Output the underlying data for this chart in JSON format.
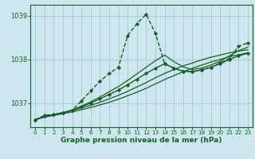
{
  "title": "Graphe pression niveau de la mer (hPa)",
  "bg_color": "#cce8ee",
  "grid_color": "#aaccd4",
  "line_color": "#1a5c28",
  "xlim": [
    -0.5,
    23.5
  ],
  "ylim": [
    1036.45,
    1039.25
  ],
  "yticks": [
    1037,
    1038,
    1039
  ],
  "xticks": [
    0,
    1,
    2,
    3,
    4,
    5,
    6,
    7,
    8,
    9,
    10,
    11,
    12,
    13,
    14,
    15,
    16,
    17,
    18,
    19,
    20,
    21,
    22,
    23
  ],
  "series": [
    {
      "x": [
        0,
        1,
        2,
        3,
        4,
        5,
        6,
        7,
        8,
        9,
        10,
        11,
        12,
        13,
        14,
        15,
        16,
        17,
        18,
        19,
        20,
        21,
        22,
        23
      ],
      "y": [
        1036.62,
        1036.68,
        1036.72,
        1036.76,
        1036.8,
        1036.85,
        1036.9,
        1036.96,
        1037.02,
        1037.09,
        1037.17,
        1037.25,
        1037.34,
        1037.44,
        1037.54,
        1037.63,
        1037.72,
        1037.8,
        1037.87,
        1037.94,
        1038.0,
        1038.06,
        1038.11,
        1038.15
      ],
      "linestyle": "-",
      "marker": null,
      "lw": 0.9
    },
    {
      "x": [
        0,
        1,
        2,
        3,
        4,
        5,
        6,
        7,
        8,
        9,
        10,
        11,
        12,
        13,
        14,
        15,
        16,
        17,
        18,
        19,
        20,
        21,
        22,
        23
      ],
      "y": [
        1036.62,
        1036.69,
        1036.74,
        1036.78,
        1036.83,
        1036.89,
        1036.95,
        1037.02,
        1037.1,
        1037.18,
        1037.27,
        1037.37,
        1037.47,
        1037.58,
        1037.68,
        1037.77,
        1037.85,
        1037.92,
        1037.99,
        1038.05,
        1038.1,
        1038.15,
        1038.19,
        1038.22
      ],
      "linestyle": "-",
      "marker": null,
      "lw": 0.9
    },
    {
      "x": [
        0,
        1,
        2,
        3,
        4,
        5,
        6,
        7,
        8,
        9,
        10,
        11,
        12,
        13,
        14,
        15,
        16,
        17,
        18,
        19,
        20,
        21,
        22,
        23
      ],
      "y": [
        1036.62,
        1036.7,
        1036.74,
        1036.78,
        1036.84,
        1036.92,
        1037.0,
        1037.1,
        1037.2,
        1037.3,
        1037.42,
        1037.55,
        1037.68,
        1037.8,
        1037.9,
        1037.8,
        1037.73,
        1037.72,
        1037.76,
        1037.82,
        1037.9,
        1038.0,
        1038.08,
        1038.14
      ],
      "linestyle": "-",
      "marker": "D",
      "lw": 1.0
    },
    {
      "x": [
        0,
        1,
        2,
        3,
        4,
        5,
        6,
        7,
        8,
        9,
        10,
        11,
        12,
        13,
        14,
        15,
        16,
        17,
        18,
        19,
        20,
        21,
        22,
        23
      ],
      "y": [
        1036.62,
        1036.72,
        1036.74,
        1036.78,
        1036.84,
        1037.05,
        1037.28,
        1037.5,
        1037.68,
        1037.82,
        1038.55,
        1038.82,
        1039.03,
        1038.6,
        1037.9,
        1037.8,
        1037.73,
        1037.72,
        1037.76,
        1037.82,
        1037.92,
        1038.02,
        1038.3,
        1038.38
      ],
      "linestyle": "--",
      "marker": "D",
      "lw": 1.0
    },
    {
      "x": [
        0,
        1,
        2,
        3,
        4,
        5,
        6,
        7,
        8,
        9,
        10,
        11,
        12,
        13,
        14,
        15,
        16,
        17,
        18,
        19,
        20,
        21,
        22,
        23
      ],
      "y": [
        1036.62,
        1036.7,
        1036.74,
        1036.78,
        1036.84,
        1036.93,
        1037.03,
        1037.14,
        1037.26,
        1037.38,
        1037.52,
        1037.67,
        1037.82,
        1037.97,
        1038.1,
        1037.95,
        1037.83,
        1037.77,
        1037.8,
        1037.87,
        1037.96,
        1038.08,
        1038.2,
        1038.28
      ],
      "linestyle": "-",
      "marker": null,
      "lw": 0.9
    }
  ]
}
